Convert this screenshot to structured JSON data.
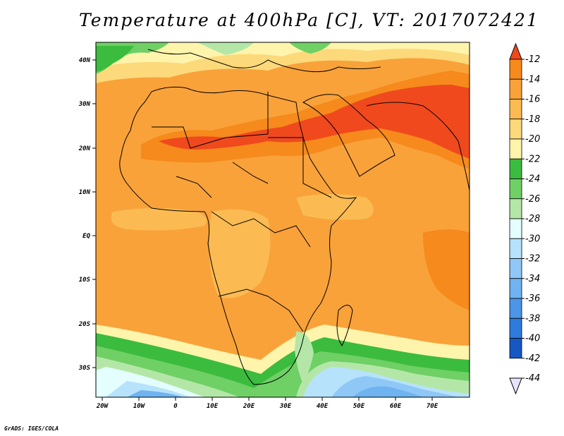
{
  "map": {
    "title": "Temperature at 400hPa [C], VT: 2017072421",
    "footer": "GrADS: IGES/COLA",
    "x_ticks": [
      "20W",
      "10W",
      "0",
      "10E",
      "20E",
      "30E",
      "40E",
      "50E",
      "60E",
      "70E"
    ],
    "y_ticks": [
      "40N",
      "30N",
      "20N",
      "10N",
      "EQ",
      "10S",
      "20S",
      "30S"
    ]
  },
  "colorbar": {
    "labels": [
      "-12",
      "-14",
      "-16",
      "-18",
      "-20",
      "-22",
      "-24",
      "-26",
      "-28",
      "-30",
      "-32",
      "-34",
      "-36",
      "-38",
      "-40",
      "-42",
      "-44"
    ],
    "colors": [
      "#f0491e",
      "#f68a1c",
      "#f9a23a",
      "#fbbb52",
      "#fcd97a",
      "#fef4ab",
      "#3cbc3e",
      "#6fd065",
      "#b4e7a7",
      "#e4fdfd",
      "#b7e2fc",
      "#8fc8f7",
      "#6fb3f1",
      "#4b96e6",
      "#2f7bdb",
      "#1557c3",
      "#0e2d8c"
    ]
  }
}
